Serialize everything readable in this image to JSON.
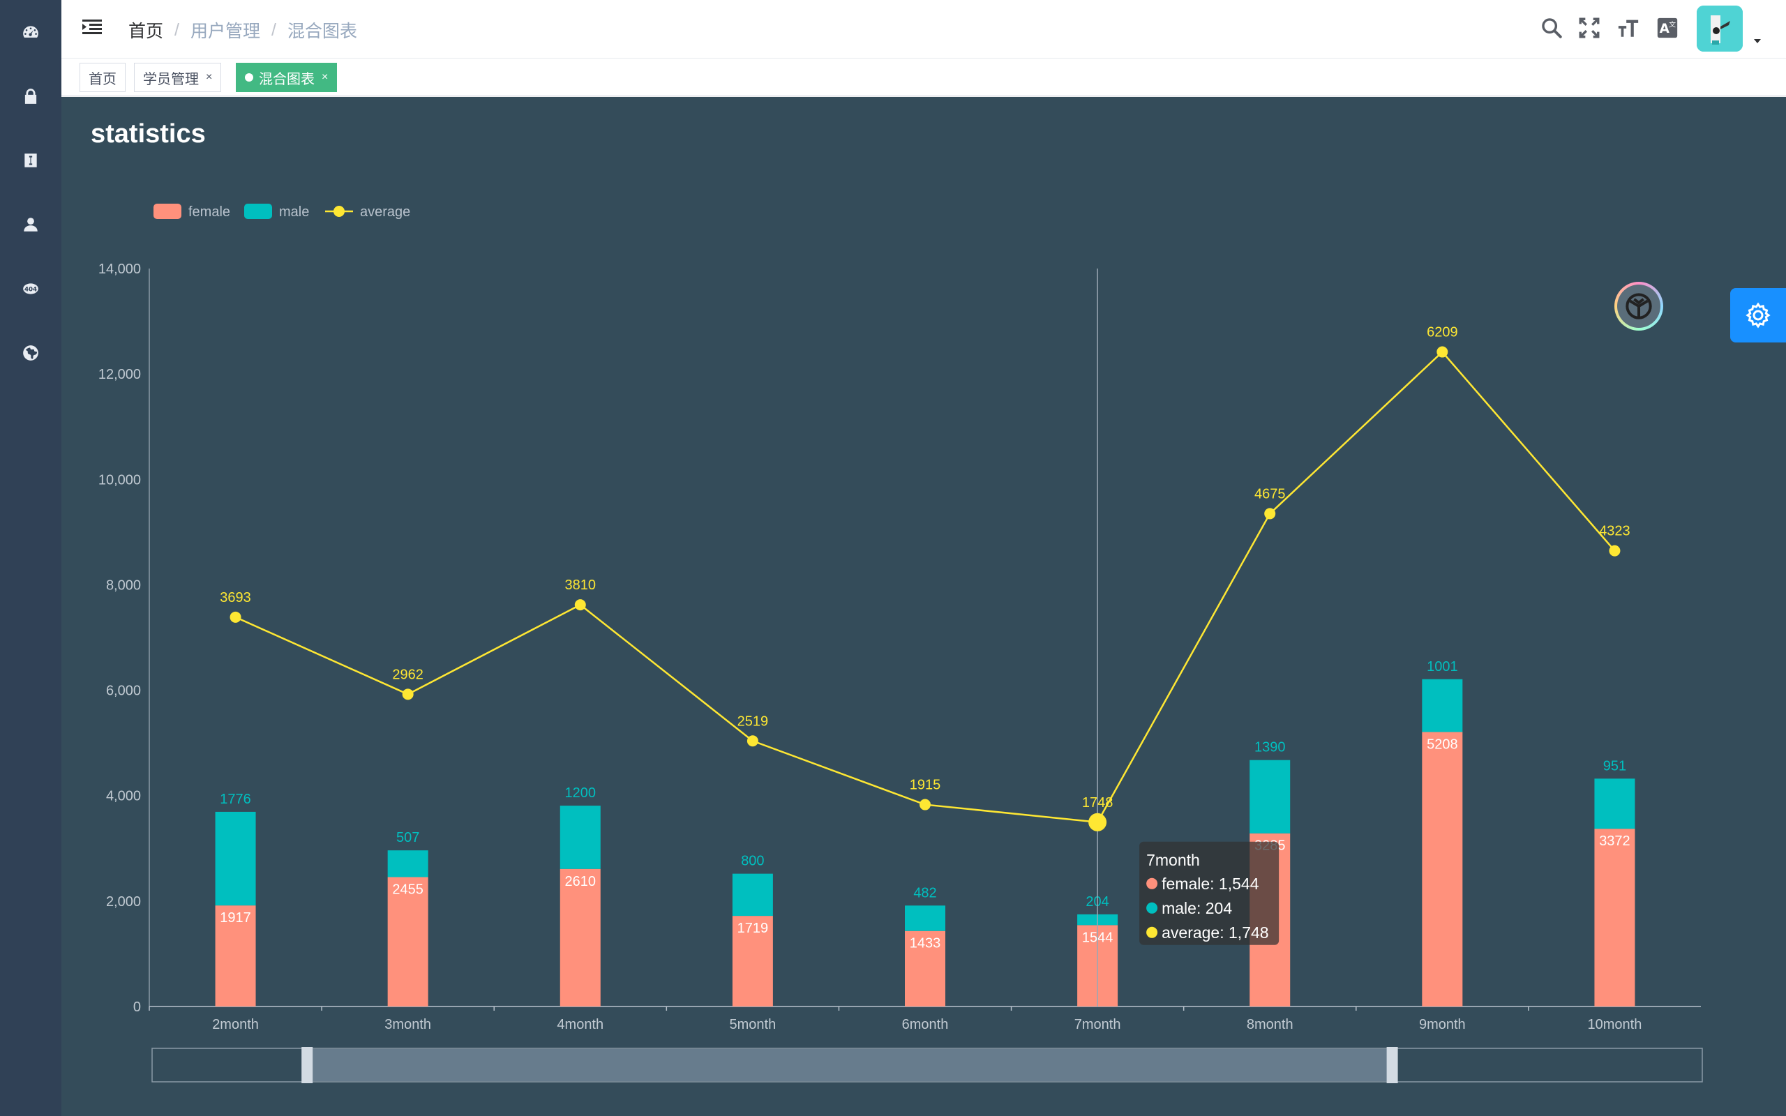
{
  "breadcrumb": {
    "home": "首页",
    "level1": "用户管理",
    "level2": "混合图表"
  },
  "tags": [
    {
      "label": "首页",
      "closable": false,
      "active": false
    },
    {
      "label": "学员管理",
      "closable": true,
      "active": false
    },
    {
      "label": "混合图表",
      "closable": true,
      "active": true
    }
  ],
  "tag_close_glyph": "×",
  "sidebar_icons": [
    "dashboard-icon",
    "lock-icon",
    "document-icon",
    "user-icon",
    "404-icon",
    "globe-icon"
  ],
  "navbar_tools": [
    "search-icon",
    "fullscreen-icon",
    "font-size-icon",
    "translate-icon"
  ],
  "colors": {
    "sidebar_bg": "#304156",
    "main_bg": "#344c5a",
    "female": "#ff917c",
    "male": "#00bfbf",
    "average": "#fee733",
    "active_tag": "#42b983",
    "settings_button": "#1890ff"
  },
  "main": {
    "title": "statistics"
  },
  "tooltip": {
    "title": "7month",
    "rows": [
      {
        "name": "female",
        "value": "1,544",
        "color": "#ff917c"
      },
      {
        "name": "male",
        "value": "204",
        "color": "#00bfbf"
      },
      {
        "name": "average",
        "value": "1,748",
        "color": "#fee733"
      }
    ]
  },
  "chart_data": {
    "type": "bar",
    "title": "statistics",
    "legend": [
      "female",
      "male",
      "average"
    ],
    "legend_position": "top-left",
    "categories": [
      "2month",
      "3month",
      "4month",
      "5month",
      "6month",
      "7month",
      "8month",
      "9month",
      "10month"
    ],
    "series": [
      {
        "name": "female",
        "type": "bar",
        "stack": true,
        "values": [
          1917,
          2455,
          2610,
          1719,
          1433,
          1544,
          3285,
          5208,
          3372
        ]
      },
      {
        "name": "male",
        "type": "bar",
        "stack": true,
        "values": [
          1776,
          507,
          1200,
          800,
          482,
          204,
          1390,
          1001,
          951
        ]
      },
      {
        "name": "average",
        "type": "line",
        "labels": [
          3693,
          2962,
          3810,
          2519,
          1915,
          1748,
          4675,
          6209,
          4323
        ],
        "plotted_values": [
          7386,
          5924,
          7620,
          5038,
          3830,
          3496,
          9350,
          12418,
          8646
        ]
      }
    ],
    "yticks": [
      "0",
      "2,000",
      "4,000",
      "6,000",
      "8,000",
      "10,000",
      "12,000",
      "14,000"
    ],
    "ylim": [
      0,
      14000
    ],
    "grid": false,
    "hover_category": "7month",
    "datazoom_range": [
      0.1,
      0.8
    ]
  }
}
